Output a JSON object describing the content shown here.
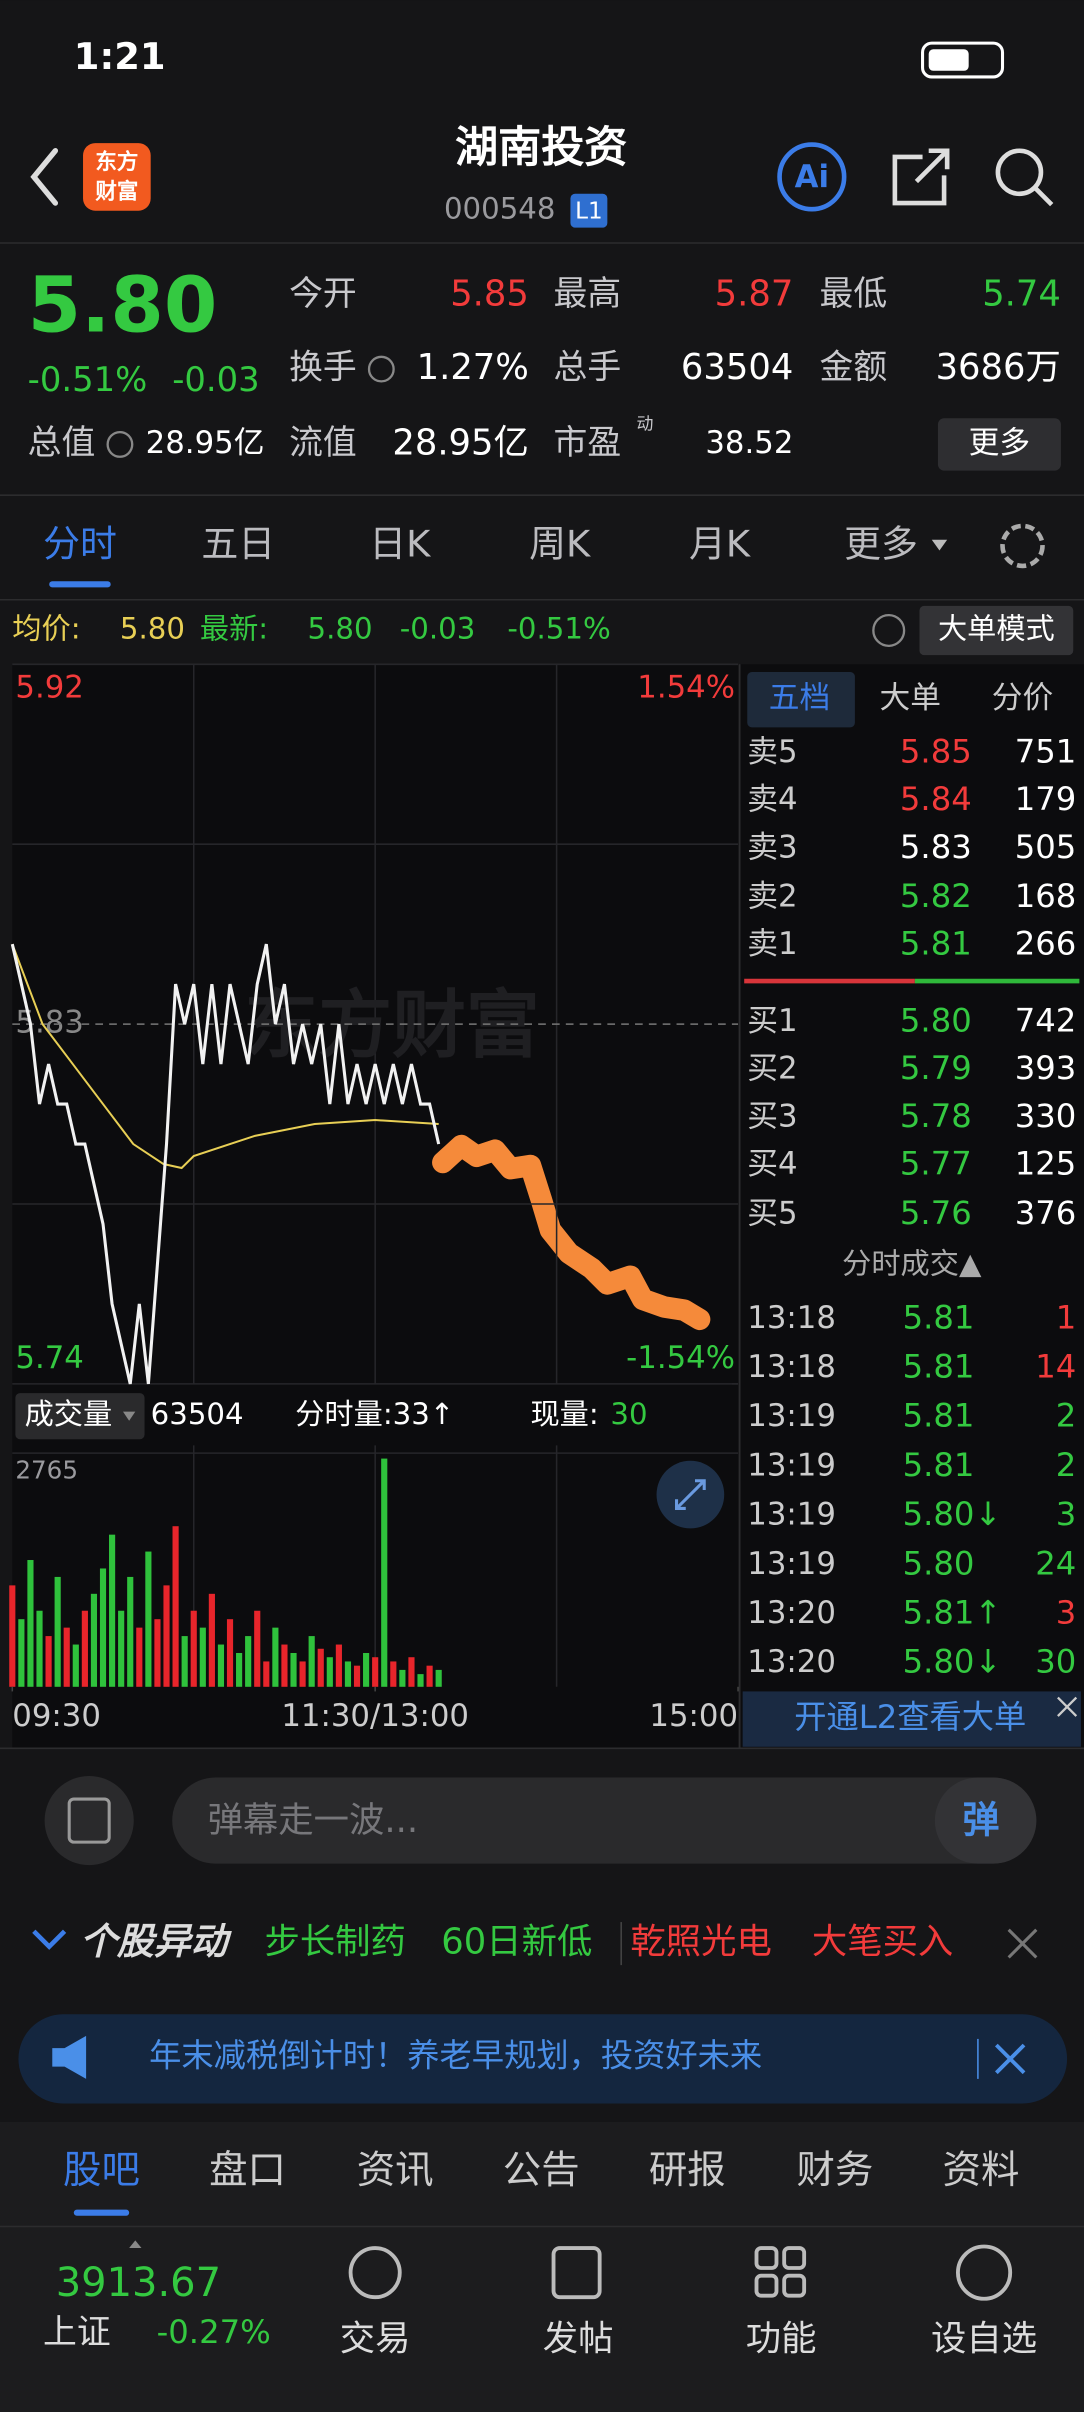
{
  "status": {
    "time": "1:21"
  },
  "header": {
    "logo": [
      "东方",
      "财富"
    ],
    "title": "湖南投资",
    "code": "000548",
    "badge": "L1"
  },
  "quote": {
    "price": "5.80",
    "change_pct": "-0.51%",
    "change": "-0.03",
    "stats": [
      {
        "label": "今开",
        "value": "5.85",
        "color": "#f23b3b"
      },
      {
        "label": "最高",
        "value": "5.87",
        "color": "#f23b3b"
      },
      {
        "label": "最低",
        "value": "5.74",
        "color": "#34c941"
      },
      {
        "label": "换手",
        "value": "1.27%",
        "color": "#ffffff"
      },
      {
        "label": "总手",
        "value": "63504",
        "color": "#ffffff"
      },
      {
        "label": "金额",
        "value": "3686万",
        "color": "#ffffff"
      },
      {
        "label": "总值",
        "value": "28.95亿",
        "color": "#ffffff"
      },
      {
        "label": "流值",
        "value": "28.95亿",
        "color": "#ffffff"
      },
      {
        "label": "市盈",
        "sup": "动",
        "value": "38.52",
        "color": "#ffffff"
      }
    ],
    "more": "更多"
  },
  "tabs": [
    "分时",
    "五日",
    "日K",
    "周K",
    "月K",
    "更多"
  ],
  "info": {
    "avg_label": "均价:",
    "avg": "5.80",
    "last_label": "最新:",
    "last": "5.80",
    "change": "-0.03",
    "change_pct": "-0.51%",
    "mode_button": "大单模式"
  },
  "chart_data": {
    "type": "line",
    "watermark": "东方财富",
    "xlim": [
      0,
      240
    ],
    "xticks": [
      {
        "value": 0,
        "label": "09:30"
      },
      {
        "value": 120,
        "label": "11:30/13:00"
      },
      {
        "value": 240,
        "label": "15:00"
      }
    ],
    "ylim": [
      5.74,
      5.92
    ],
    "yticks": [
      5.92,
      5.83,
      5.74
    ],
    "y2lim": [
      -1.54,
      1.54
    ],
    "y2ticks": [
      {
        "value": 1.54,
        "label": "1.54%"
      },
      {
        "value": -1.54,
        "label": "-1.54%"
      }
    ],
    "series": [
      {
        "name": "price",
        "color": "#f2f2f2",
        "x": [
          0,
          3,
          6,
          9,
          12,
          15,
          18,
          21,
          24,
          27,
          30,
          33,
          36,
          39,
          42,
          45,
          48,
          51,
          54,
          57,
          60,
          63,
          66,
          69,
          72,
          75,
          78,
          81,
          84,
          87,
          90,
          93,
          96,
          99,
          102,
          105,
          108,
          111,
          114,
          117,
          120,
          123,
          126,
          129,
          132,
          135,
          138,
          141
        ],
        "values": [
          5.85,
          5.84,
          5.83,
          5.81,
          5.82,
          5.81,
          5.81,
          5.8,
          5.8,
          5.79,
          5.78,
          5.76,
          5.75,
          5.74,
          5.76,
          5.74,
          5.77,
          5.8,
          5.84,
          5.83,
          5.84,
          5.82,
          5.84,
          5.82,
          5.84,
          5.83,
          5.82,
          5.84,
          5.85,
          5.83,
          5.84,
          5.82,
          5.83,
          5.82,
          5.83,
          5.81,
          5.83,
          5.81,
          5.82,
          5.81,
          5.82,
          5.81,
          5.82,
          5.81,
          5.82,
          5.81,
          5.81,
          5.8
        ]
      },
      {
        "name": "average",
        "color": "#e8cf55",
        "x": [
          0,
          10,
          20,
          30,
          40,
          50,
          56,
          60,
          80,
          100,
          120,
          141
        ],
        "values": [
          5.85,
          5.83,
          5.82,
          5.81,
          5.8,
          5.795,
          5.794,
          5.797,
          5.802,
          5.805,
          5.806,
          5.805
        ]
      }
    ],
    "volume": {
      "label": "成交量",
      "total": "63504",
      "minute": "分时量:33↑",
      "current_label": "现量:",
      "current": "30",
      "ylim": [
        0,
        2765
      ],
      "yticks": [
        2765
      ],
      "values": [
        1200,
        800,
        1500,
        900,
        600,
        1300,
        700,
        500,
        900,
        1100,
        1400,
        1800,
        900,
        1300,
        700,
        1600,
        800,
        1200,
        1900,
        600,
        900,
        700,
        1100,
        500,
        800,
        400,
        600,
        900,
        300,
        700,
        500,
        400,
        300,
        600,
        450,
        350,
        500,
        300,
        250,
        400,
        350,
        2700,
        300,
        200,
        350,
        150,
        250,
        200
      ]
    }
  },
  "order_book": {
    "tabs": [
      "五档",
      "大单",
      "分价"
    ],
    "asks": [
      {
        "label": "卖5",
        "price": "5.85",
        "volume": 751,
        "color": "#f23b3b"
      },
      {
        "label": "卖4",
        "price": "5.84",
        "volume": 179,
        "color": "#f23b3b"
      },
      {
        "label": "卖3",
        "price": "5.83",
        "volume": 505,
        "color": "#ffffff"
      },
      {
        "label": "卖2",
        "price": "5.82",
        "volume": 168,
        "color": "#34c941"
      },
      {
        "label": "卖1",
        "price": "5.81",
        "volume": 266,
        "color": "#34c941"
      }
    ],
    "bids": [
      {
        "label": "买1",
        "price": "5.80",
        "volume": 742,
        "color": "#34c941"
      },
      {
        "label": "买2",
        "price": "5.79",
        "volume": 393,
        "color": "#34c941"
      },
      {
        "label": "买3",
        "price": "5.78",
        "volume": 330,
        "color": "#34c941"
      },
      {
        "label": "买4",
        "price": "5.77",
        "volume": 125,
        "color": "#34c941"
      },
      {
        "label": "买5",
        "price": "5.76",
        "volume": 376,
        "color": "#34c941"
      }
    ],
    "ticks_title": "分时成交▲",
    "ticks": [
      {
        "time": "13:18",
        "price": "5.81",
        "volume": 1,
        "color": "#f23b3b"
      },
      {
        "time": "13:18",
        "price": "5.81",
        "volume": 14,
        "color": "#f23b3b"
      },
      {
        "time": "13:19",
        "price": "5.81",
        "volume": 2,
        "color": "#34c941"
      },
      {
        "time": "13:19",
        "price": "5.81",
        "volume": 2,
        "color": "#34c941"
      },
      {
        "time": "13:19",
        "price": "5.80↓",
        "volume": 3,
        "color": "#34c941"
      },
      {
        "time": "13:19",
        "price": "5.80",
        "volume": 24,
        "color": "#34c941"
      },
      {
        "time": "13:20",
        "price": "5.81↑",
        "volume": 3,
        "color": "#f23b3b"
      },
      {
        "time": "13:20",
        "price": "5.80↓",
        "volume": 30,
        "color": "#34c941"
      }
    ],
    "l2_banner": "开通L2查看大单"
  },
  "comment": {
    "placeholder": "弹幕走一波...",
    "button": "弹"
  },
  "alert": {
    "title": "个股异动",
    "items": [
      {
        "text": "步长制药",
        "color": "#34c941"
      },
      {
        "text": "60日新低",
        "color": "#34c941"
      },
      {
        "text": "乾照光电",
        "color": "#f23b3b"
      },
      {
        "text": "大笔买入",
        "color": "#f23b3b"
      }
    ]
  },
  "banner": "年末减税倒计时！养老早规划，投资好未来",
  "bottom_tabs": [
    "股吧",
    "盘口",
    "资讯",
    "公告",
    "研报",
    "财务",
    "资料"
  ],
  "nav": {
    "index_value": "3913.67",
    "index_name": "上证",
    "index_change": "-0.27%",
    "items": [
      "交易",
      "发帖",
      "功能",
      "设自选"
    ]
  }
}
